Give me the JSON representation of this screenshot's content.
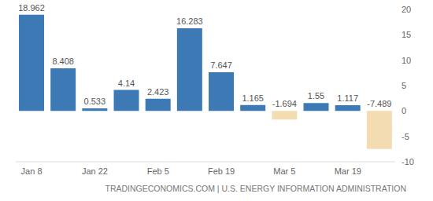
{
  "chart_data": {
    "type": "bar",
    "source": "TRADINGECONOMICS.COM | U.S. ENERGY INFORMATION ADMINISTRATION",
    "categories": [
      "Jan 8",
      null,
      "Jan 22",
      null,
      "Feb 5",
      null,
      "Feb 19",
      null,
      "Mar 5",
      null,
      "Mar 19",
      null
    ],
    "values": [
      18.962,
      8.408,
      0.533,
      4.14,
      2.423,
      16.283,
      7.647,
      1.165,
      -1.694,
      1.55,
      1.117,
      -7.489
    ],
    "colors": [
      "#3d7ab5",
      "#3d7ab5",
      "#3d7ab5",
      "#3d7ab5",
      "#3d7ab5",
      "#3d7ab5",
      "#3d7ab5",
      "#3d7ab5",
      "#f3dcb1",
      "#3d7ab5",
      "#3d7ab5",
      "#f3dcb1"
    ],
    "ylim": [
      -10,
      20
    ],
    "yticks": [
      -10,
      -5,
      0,
      5,
      10,
      15,
      20
    ],
    "grid": false,
    "data_labels": true
  }
}
